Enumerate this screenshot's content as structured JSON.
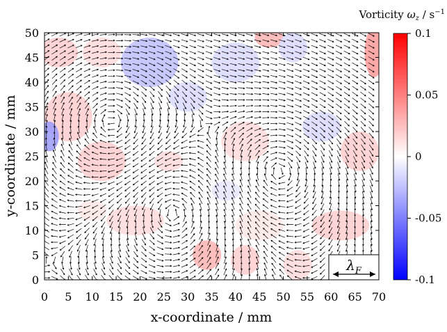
{
  "chart_data": {
    "type": "heatmap",
    "subtype": "vector-field-with-vorticity-colormap",
    "title": "",
    "xlabel": "x-coordinate / mm",
    "ylabel": "y-coordinate / mm",
    "xlim": [
      0,
      70
    ],
    "ylim": [
      0,
      50
    ],
    "xticks": [
      0,
      5,
      10,
      15,
      20,
      25,
      30,
      35,
      40,
      45,
      50,
      55,
      60,
      65,
      70
    ],
    "yticks": [
      0,
      5,
      10,
      15,
      20,
      25,
      30,
      35,
      40,
      45,
      50
    ],
    "xtick_labels": [
      "0",
      "5",
      "10",
      "15",
      "20",
      "25",
      "30",
      "35",
      "40",
      "45",
      "50",
      "55",
      "60",
      "65",
      "70"
    ],
    "ytick_labels": [
      "0",
      "5",
      "10",
      "15",
      "20",
      "25",
      "30",
      "35",
      "40",
      "45",
      "50"
    ],
    "colorbar": {
      "label": "Vorticity ωz / s−1",
      "label_parts": {
        "main": "Vorticity ",
        "symbol": "ω",
        "sub": "z",
        "unit": " / s",
        "exp": "−1"
      },
      "range": [
        -0.1,
        0.1
      ],
      "ticks": [
        0.1,
        0.05,
        0,
        -0.05,
        -0.1
      ],
      "tick_labels": [
        "0.1",
        "0.05",
        "0",
        "-0.05",
        "-0.1"
      ],
      "colormap": [
        "#0000ff",
        "#ffffff",
        "#ff0000"
      ]
    },
    "vorticity_patches": [
      {
        "x": 3,
        "y": 46,
        "rx": 4,
        "ry": 3,
        "value": 0.02
      },
      {
        "x": 12,
        "y": 46,
        "rx": 4,
        "ry": 3,
        "value": 0.015
      },
      {
        "x": 22,
        "y": 44,
        "rx": 6,
        "ry": 5,
        "value": -0.025
      },
      {
        "x": 30,
        "y": 37,
        "rx": 4,
        "ry": 3,
        "value": -0.015
      },
      {
        "x": 40,
        "y": 44,
        "rx": 5,
        "ry": 4,
        "value": -0.015
      },
      {
        "x": 47,
        "y": 49,
        "rx": 3,
        "ry": 2,
        "value": 0.03
      },
      {
        "x": 52,
        "y": 47,
        "rx": 3,
        "ry": 3,
        "value": -0.015
      },
      {
        "x": 69,
        "y": 46,
        "rx": 2,
        "ry": 5,
        "value": 0.04
      },
      {
        "x": 5,
        "y": 33,
        "rx": 5,
        "ry": 5,
        "value": 0.02
      },
      {
        "x": 1,
        "y": 29,
        "rx": 2,
        "ry": 3,
        "value": -0.04
      },
      {
        "x": 12,
        "y": 24,
        "rx": 5,
        "ry": 4,
        "value": 0.02
      },
      {
        "x": 26,
        "y": 24,
        "rx": 3,
        "ry": 2,
        "value": 0.015
      },
      {
        "x": 42,
        "y": 28,
        "rx": 5,
        "ry": 4,
        "value": 0.015
      },
      {
        "x": 58,
        "y": 31,
        "rx": 4,
        "ry": 3,
        "value": -0.015
      },
      {
        "x": 66,
        "y": 26,
        "rx": 4,
        "ry": 4,
        "value": 0.02
      },
      {
        "x": 19,
        "y": 12,
        "rx": 6,
        "ry": 3,
        "value": 0.015
      },
      {
        "x": 45,
        "y": 11,
        "rx": 5,
        "ry": 3,
        "value": 0.01
      },
      {
        "x": 62,
        "y": 11,
        "rx": 6,
        "ry": 3,
        "value": 0.02
      },
      {
        "x": 34,
        "y": 5,
        "rx": 3,
        "ry": 3,
        "value": 0.03
      },
      {
        "x": 42,
        "y": 4,
        "rx": 3,
        "ry": 3,
        "value": 0.02
      },
      {
        "x": 53,
        "y": 3,
        "rx": 3,
        "ry": 3,
        "value": 0.015
      },
      {
        "x": 38,
        "y": 18,
        "rx": 3,
        "ry": 2,
        "value": -0.01
      },
      {
        "x": 10,
        "y": 14,
        "rx": 3,
        "ry": 2,
        "value": 0.01
      }
    ],
    "vector_field": {
      "grid_dx": 1.7,
      "grid_dy": 1.2,
      "centers": [
        {
          "x": 14,
          "y": 32,
          "strength": 1.0,
          "sense": "cw"
        },
        {
          "x": 27,
          "y": 14,
          "strength": 0.8,
          "sense": "ccw"
        },
        {
          "x": 49,
          "y": 22,
          "strength": 0.7,
          "sense": "cw"
        }
      ],
      "arrow_length_mm": 1.4
    },
    "reference_box": {
      "label": "λF",
      "symbol": "λ",
      "sub": "F",
      "x0": 59,
      "x1": 70,
      "y0": 0,
      "y1": 5
    }
  }
}
